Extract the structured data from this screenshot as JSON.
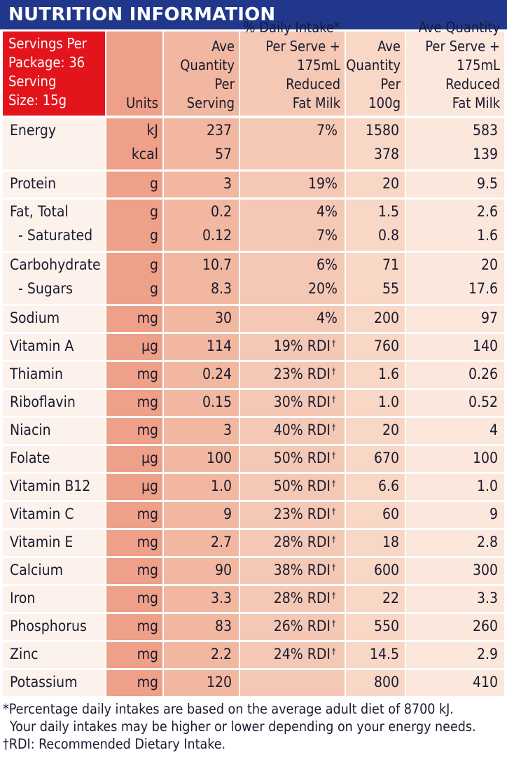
{
  "title": "NUTRITION INFORMATION",
  "header": {
    "servings_per_package": "Servings Per",
    "servings_per_package_2": "Package: 36",
    "serving_size": "Serving",
    "serving_size_2": "Size: 15g",
    "units": "Units",
    "ave_per_serving": [
      "Ave",
      "Quantity",
      "Per Serving"
    ],
    "daily_intake": [
      "% Daily Intake*",
      "Per Serve +",
      "175mL Reduced",
      "Fat Milk"
    ],
    "ave_per_100g": [
      "Ave",
      "Quantity",
      "Per 100g"
    ],
    "ave_per_serve_milk": [
      "Ave Quantity",
      "Per Serve +",
      "175mL Reduced",
      "Fat Milk"
    ]
  },
  "groups": [
    {
      "rows": [
        {
          "name": "Energy",
          "unit": "kJ",
          "serving": "237",
          "di": "7%",
          "per100g": "1580",
          "milk": "583"
        },
        {
          "name": "",
          "unit": "kcal",
          "serving": "57",
          "di": "",
          "per100g": "378",
          "milk": "139"
        }
      ]
    },
    {
      "rows": [
        {
          "name": "Protein",
          "unit": "g",
          "serving": "3",
          "di": "19%",
          "per100g": "20",
          "milk": "9.5"
        }
      ]
    },
    {
      "rows": [
        {
          "name": "Fat, Total",
          "unit": "g",
          "serving": "0.2",
          "di": "4%",
          "per100g": "1.5",
          "milk": "2.6"
        },
        {
          "name": "- Saturated",
          "unit": "g",
          "serving": "0.12",
          "di": "7%",
          "per100g": "0.8",
          "milk": "1.6"
        }
      ]
    },
    {
      "rows": [
        {
          "name": "Carbohydrate",
          "unit": "g",
          "serving": "10.7",
          "di": "6%",
          "per100g": "71",
          "milk": "20"
        },
        {
          "name": "- Sugars",
          "unit": "g",
          "serving": "8.3",
          "di": "20%",
          "per100g": "55",
          "milk": "17.6"
        }
      ]
    },
    {
      "rows": [
        {
          "name": "Sodium",
          "unit": "mg",
          "serving": "30",
          "di": "4%",
          "per100g": "200",
          "milk": "97"
        }
      ]
    },
    {
      "rows": [
        {
          "name": "Vitamin A",
          "unit": "µg",
          "serving": "114",
          "di": "19% RDI",
          "per100g": "760",
          "milk": "140"
        }
      ]
    },
    {
      "rows": [
        {
          "name": "Thiamin",
          "unit": "mg",
          "serving": "0.24",
          "di": "23% RDI",
          "per100g": "1.6",
          "milk": "0.26"
        }
      ]
    },
    {
      "rows": [
        {
          "name": "Riboflavin",
          "unit": "mg",
          "serving": "0.15",
          "di": "30% RDI",
          "per100g": "1.0",
          "milk": "0.52"
        }
      ]
    },
    {
      "rows": [
        {
          "name": "Niacin",
          "unit": "mg",
          "serving": "3",
          "di": "40% RDI",
          "per100g": "20",
          "milk": "4"
        }
      ]
    },
    {
      "rows": [
        {
          "name": "Folate",
          "unit": "µg",
          "serving": "100",
          "di": "50% RDI",
          "per100g": "670",
          "milk": "100"
        }
      ]
    },
    {
      "rows": [
        {
          "name": "Vitamin B12",
          "unit": "µg",
          "serving": "1.0",
          "di": "50% RDI",
          "per100g": "6.6",
          "milk": "1.0"
        }
      ]
    },
    {
      "rows": [
        {
          "name": "Vitamin C",
          "unit": "mg",
          "serving": "9",
          "di": "23% RDI",
          "per100g": "60",
          "milk": "9"
        }
      ]
    },
    {
      "rows": [
        {
          "name": "Vitamin E",
          "unit": "mg",
          "serving": "2.7",
          "di": "28% RDI",
          "per100g": "18",
          "milk": "2.8"
        }
      ]
    },
    {
      "rows": [
        {
          "name": "Calcium",
          "unit": "mg",
          "serving": "90",
          "di": "38% RDI",
          "per100g": "600",
          "milk": "300"
        }
      ]
    },
    {
      "rows": [
        {
          "name": "Iron",
          "unit": "mg",
          "serving": "3.3",
          "di": "28% RDI",
          "per100g": "22",
          "milk": "3.3"
        }
      ]
    },
    {
      "rows": [
        {
          "name": "Phosphorus",
          "unit": "mg",
          "serving": "83",
          "di": "26% RDI",
          "per100g": "550",
          "milk": "260"
        }
      ]
    },
    {
      "rows": [
        {
          "name": "Zinc",
          "unit": "mg",
          "serving": "2.2",
          "di": "24% RDI",
          "per100g": "14.5",
          "milk": "2.9"
        }
      ]
    },
    {
      "rows": [
        {
          "name": "Potassium",
          "unit": "mg",
          "serving": "120",
          "di": "",
          "per100g": "800",
          "milk": "410"
        }
      ]
    }
  ],
  "dagger": "†",
  "footnotes": {
    "line1": "*Percentage daily intakes are based on the average adult diet of 8700 kJ.",
    "line2": "Your daily intakes may be higher or lower depending on your energy needs.",
    "line3": "†RDI: Recommended Dietary Intake."
  }
}
